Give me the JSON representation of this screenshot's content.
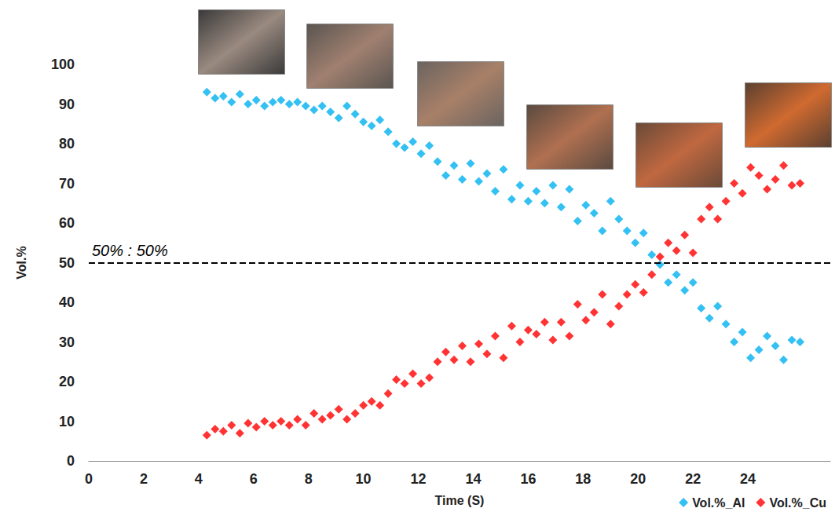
{
  "chart_data": {
    "type": "scatter",
    "x_label": "Time (S)",
    "y_label": "Vol.%",
    "xlim": [
      0,
      27
    ],
    "xticks": [
      0,
      2,
      4,
      6,
      8,
      10,
      12,
      14,
      16,
      18,
      20,
      22,
      24
    ],
    "ylim": [
      0,
      100
    ],
    "yticks": [
      0,
      10,
      20,
      30,
      40,
      50,
      60,
      70,
      80,
      90,
      100
    ],
    "grid": false,
    "legend": "bottom-right",
    "marker": "diamond",
    "annotations": [
      {
        "text": "50% : 50%",
        "y": 50,
        "line_style": "dashed"
      }
    ],
    "x": [
      4.3,
      4.6,
      4.9,
      5.2,
      5.5,
      5.8,
      6.1,
      6.4,
      6.7,
      7.0,
      7.3,
      7.6,
      7.9,
      8.2,
      8.5,
      8.8,
      9.1,
      9.4,
      9.7,
      10.0,
      10.3,
      10.6,
      10.9,
      11.2,
      11.5,
      11.8,
      12.1,
      12.4,
      12.7,
      13.0,
      13.3,
      13.6,
      13.9,
      14.2,
      14.5,
      14.8,
      15.1,
      15.4,
      15.7,
      16.0,
      16.3,
      16.6,
      16.9,
      17.2,
      17.5,
      17.8,
      18.1,
      18.4,
      18.7,
      19.0,
      19.3,
      19.6,
      19.9,
      20.2,
      20.5,
      20.8,
      21.1,
      21.4,
      21.7,
      22.0,
      22.3,
      22.6,
      22.9,
      23.2,
      23.5,
      23.8,
      24.1,
      24.4,
      24.7,
      25.0,
      25.3,
      25.6,
      25.9
    ],
    "series": [
      {
        "name": "Vol.%_Al",
        "color": "#00b0f0",
        "values": [
          93,
          91.5,
          92,
          90.5,
          92.5,
          90,
          91,
          89.5,
          90.5,
          91,
          90,
          90.5,
          89.5,
          88.5,
          89.5,
          88,
          86.5,
          89.5,
          87.5,
          85.5,
          84.5,
          86,
          83,
          80,
          79,
          80.5,
          77.5,
          79.5,
          75.5,
          72,
          74.5,
          71,
          75,
          70.5,
          72.5,
          68,
          73.5,
          66,
          69.5,
          65.5,
          68,
          65,
          69.5,
          64,
          68.5,
          60.5,
          64.5,
          62.5,
          58,
          65.5,
          61,
          58,
          55,
          57.5,
          52,
          49.5,
          45,
          47,
          43,
          45,
          38.5,
          36,
          39,
          34.5,
          30,
          32.5,
          26,
          28,
          31.5,
          29,
          25.5,
          30.5,
          30
        ]
      },
      {
        "name": "Vol.%_Cu",
        "color": "#ff0000",
        "values": [
          6.5,
          8,
          7.5,
          9,
          7,
          9.5,
          8.5,
          10,
          9,
          10,
          9,
          10.5,
          9,
          12,
          10.5,
          11.5,
          13,
          10.5,
          12,
          14,
          15,
          14,
          17,
          20.5,
          19.5,
          22,
          19.5,
          21,
          25,
          27.5,
          25.5,
          29,
          25,
          29.5,
          27,
          31.5,
          26,
          34,
          30,
          33,
          32,
          35,
          30.5,
          35,
          31.5,
          39.5,
          35.5,
          37.5,
          42,
          34.5,
          39,
          42,
          44.5,
          42.5,
          47,
          51.5,
          55,
          53,
          57,
          52.5,
          61,
          64,
          61,
          65.5,
          70,
          67.5,
          74,
          72,
          68.5,
          71,
          74.5,
          69.5,
          70
        ]
      }
    ]
  }
}
